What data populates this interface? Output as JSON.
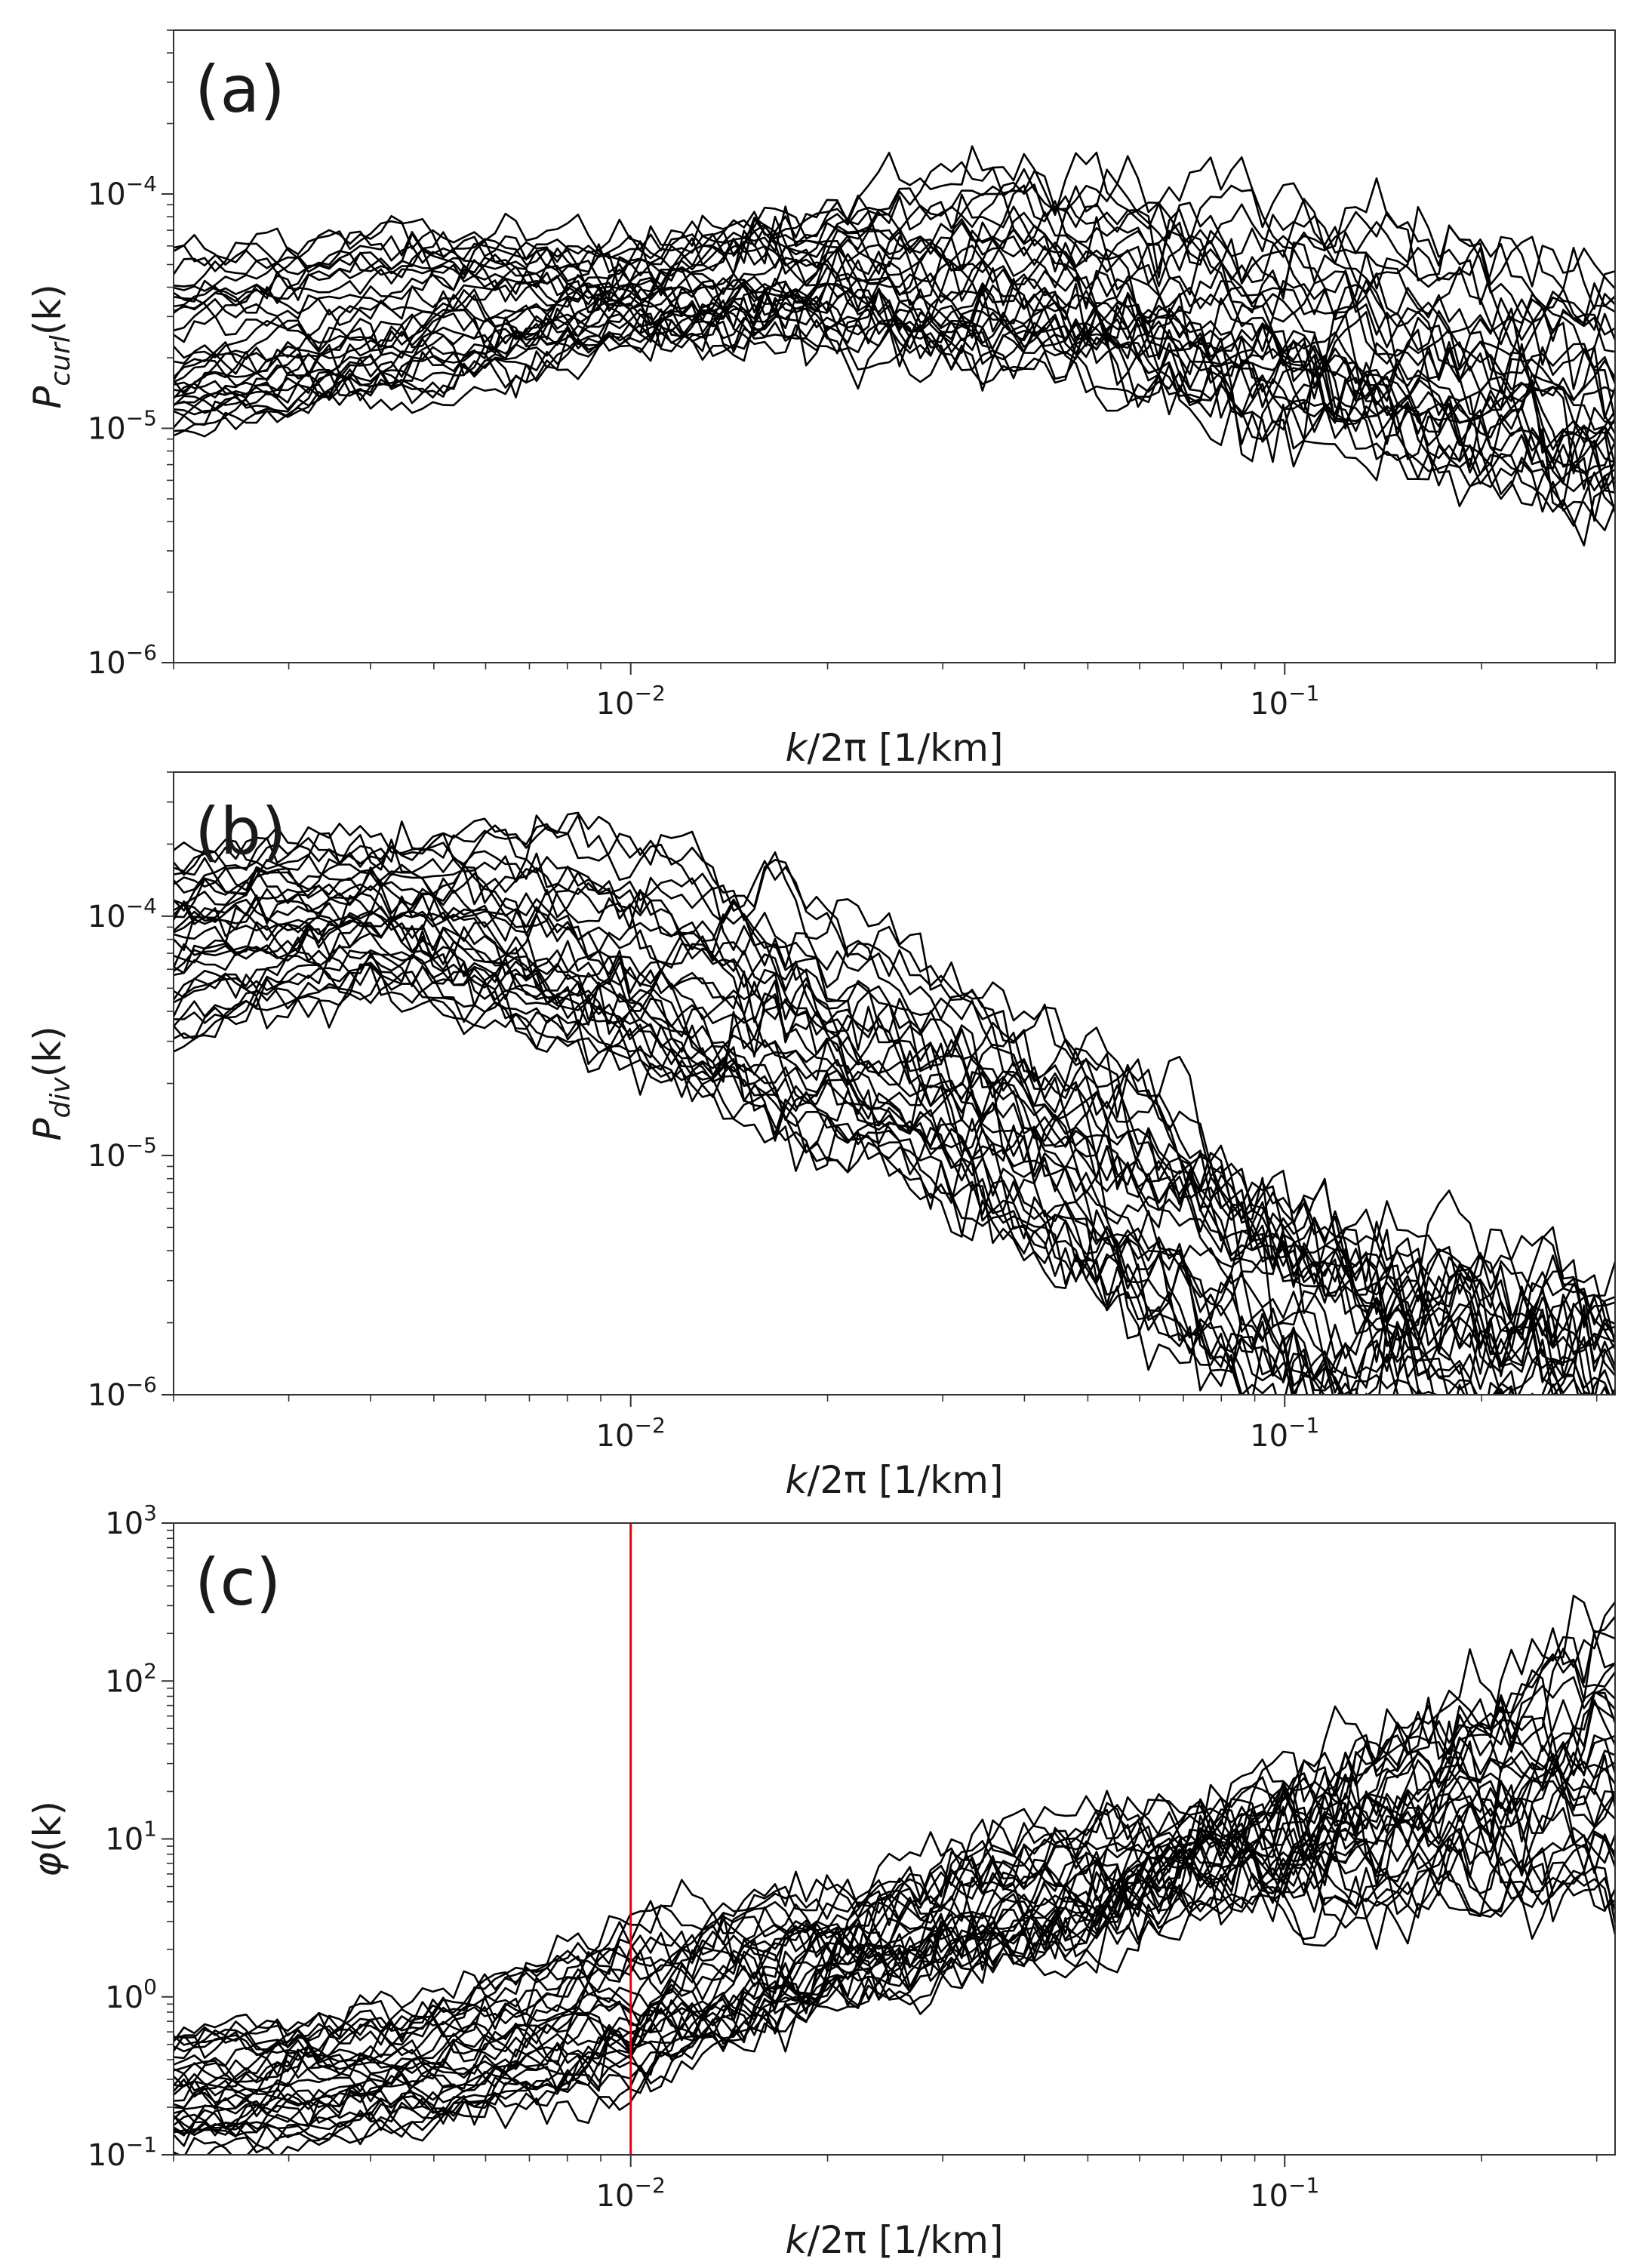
{
  "figure": {
    "series_count_per_panel": 30,
    "line_color": "#000000",
    "marker_color": "#e8000b"
  },
  "chart_data": [
    {
      "type": "line",
      "panel_label": "(a)",
      "title": "",
      "xlabel": "k/2π [1/km]",
      "xlabel_var": "k",
      "xlabel_rest": "/2π [1/km]",
      "ylabel": "P_curl(k)",
      "ylabel_main": "P",
      "ylabel_sub": "curl",
      "ylabel_rest": "(k)",
      "xscale": "log",
      "yscale": "log",
      "xlim": [
        0.002,
        0.32
      ],
      "ylim": [
        1e-06,
        0.0005
      ],
      "xticks": [
        {
          "base": "10",
          "exp": "−2",
          "value": 0.01
        },
        {
          "base": "10",
          "exp": "−1",
          "value": 0.1
        }
      ],
      "yticks": [
        {
          "base": "10",
          "exp": "−6",
          "value": 1e-06
        },
        {
          "base": "10",
          "exp": "−5",
          "value": 1e-05
        },
        {
          "base": "10",
          "exp": "−4",
          "value": 0.0001
        }
      ],
      "series_summary": {
        "count": 30,
        "anchors_x": [
          0.002,
          0.005,
          0.01,
          0.02,
          0.04,
          0.08,
          0.15,
          0.32
        ],
        "median": [
          1.8e-05,
          2.8e-05,
          3.5e-05,
          4e-05,
          3.5e-05,
          2.5e-05,
          1.6e-05,
          1e-05
        ],
        "min": [
          1e-05,
          1.5e-05,
          2.3e-05,
          2.5e-05,
          2e-05,
          1.2e-05,
          7e-06,
          4.5e-06
        ],
        "max": [
          6.5e-05,
          7.5e-05,
          6e-05,
          9e-05,
          0.00012,
          9e-05,
          6.5e-05,
          3.5e-05
        ],
        "noise_dex": 0.06
      },
      "vlines": []
    },
    {
      "type": "line",
      "panel_label": "(b)",
      "title": "",
      "xlabel": "k/2π [1/km]",
      "xlabel_var": "k",
      "xlabel_rest": "/2π [1/km]",
      "ylabel": "P_div(k)",
      "ylabel_main": "P",
      "ylabel_sub": "div",
      "ylabel_rest": "(k)",
      "xscale": "log",
      "yscale": "log",
      "xlim": [
        0.002,
        0.32
      ],
      "ylim": [
        1e-06,
        0.0004
      ],
      "xticks": [
        {
          "base": "10",
          "exp": "−2",
          "value": 0.01
        },
        {
          "base": "10",
          "exp": "−1",
          "value": 0.1
        }
      ],
      "yticks": [
        {
          "base": "10",
          "exp": "−6",
          "value": 1e-06
        },
        {
          "base": "10",
          "exp": "−5",
          "value": 1e-05
        },
        {
          "base": "10",
          "exp": "−4",
          "value": 0.0001
        }
      ],
      "series_summary": {
        "count": 30,
        "anchors_x": [
          0.002,
          0.004,
          0.008,
          0.015,
          0.03,
          0.06,
          0.1,
          0.2,
          0.32
        ],
        "median": [
          8e-05,
          0.0001,
          6e-05,
          3.5e-05,
          1.7e-05,
          6e-06,
          3e-06,
          1.6e-06,
          1.2e-06
        ],
        "min": [
          3e-05,
          5e-05,
          3e-05,
          1.5e-05,
          7e-06,
          2e-06,
          8e-07,
          6e-07,
          5e-07
        ],
        "max": [
          0.00017,
          0.0002,
          0.00022,
          0.00015,
          5e-05,
          2e-05,
          6e-06,
          3e-06,
          2.4e-06
        ],
        "noise_dex": 0.07
      },
      "vlines": []
    },
    {
      "type": "line",
      "panel_label": "(c)",
      "title": "",
      "xlabel": "k/2π [1/km]",
      "xlabel_var": "k",
      "xlabel_rest": "/2π [1/km]",
      "ylabel": "φ(k)",
      "ylabel_main": "φ",
      "ylabel_sub": "",
      "ylabel_rest": "(k)",
      "xscale": "log",
      "yscale": "log",
      "xlim": [
        0.002,
        0.32
      ],
      "ylim": [
        0.1,
        1000
      ],
      "xticks": [
        {
          "base": "10",
          "exp": "−2",
          "value": 0.01
        },
        {
          "base": "10",
          "exp": "−1",
          "value": 0.1
        }
      ],
      "yticks": [
        {
          "base": "10",
          "exp": "−1",
          "value": 0.1
        },
        {
          "base": "10",
          "exp": "0",
          "value": 1
        },
        {
          "base": "10",
          "exp": "1",
          "value": 10
        },
        {
          "base": "10",
          "exp": "2",
          "value": 100
        },
        {
          "base": "10",
          "exp": "3",
          "value": 1000
        }
      ],
      "series_summary": {
        "count": 30,
        "anchors_x": [
          0.002,
          0.005,
          0.01,
          0.02,
          0.04,
          0.08,
          0.15,
          0.32
        ],
        "median": [
          0.25,
          0.4,
          0.7,
          1.6,
          3.5,
          8,
          15,
          22
        ],
        "min": [
          0.1,
          0.15,
          0.3,
          0.9,
          2,
          4,
          4,
          4
        ],
        "max": [
          0.6,
          0.9,
          3,
          4.5,
          12,
          15,
          40,
          230
        ],
        "noise_dex": 0.09
      },
      "vlines": [
        {
          "x": 0.01,
          "color": "#e8000b"
        }
      ]
    }
  ]
}
